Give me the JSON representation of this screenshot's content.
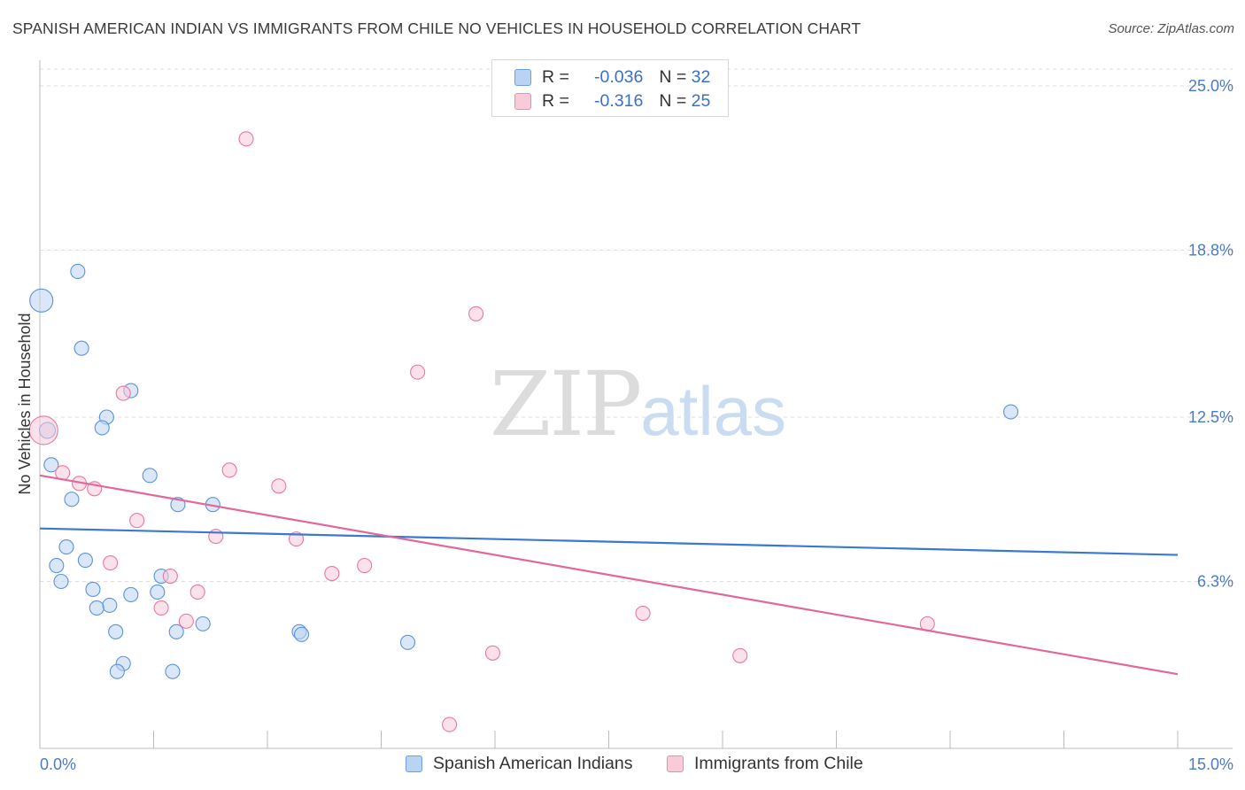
{
  "header": {
    "title": "SPANISH AMERICAN INDIAN VS IMMIGRANTS FROM CHILE NO VEHICLES IN HOUSEHOLD CORRELATION CHART",
    "source": "Source: ZipAtlas.com"
  },
  "legend": {
    "rows": [
      {
        "r_label": "R =",
        "r_value": "-0.036",
        "n_label": "N =",
        "n_value": "32"
      },
      {
        "r_label": "R =",
        "r_value": "-0.316",
        "n_label": "N =",
        "n_value": "25"
      }
    ]
  },
  "watermark": {
    "zip": "ZIP",
    "atlas": "atlas"
  },
  "chart_data": {
    "type": "scatter",
    "title": "SPANISH AMERICAN INDIAN VS IMMIGRANTS FROM CHILE NO VEHICLES IN HOUSEHOLD CORRELATION CHART",
    "ylabel": "No Vehicles in Household",
    "xlabel": "",
    "xlim": [
      0,
      15
    ],
    "ylim": [
      0,
      25.8
    ],
    "x_tick_labels": [
      "0.0%",
      "15.0%"
    ],
    "y_tick_values": [
      6.3,
      12.5,
      18.8,
      25.0
    ],
    "y_tick_labels": [
      "6.3%",
      "12.5%",
      "18.8%",
      "25.0%"
    ],
    "colors": {
      "blue": "#5b93d9",
      "blue_fill": "#bcd4f3",
      "pink": "#e8799d",
      "pink_fill": "#f8c9d7",
      "blue_line": "#3b78d0",
      "pink_line": "#e2679a"
    },
    "series": [
      {
        "name": "Spanish American Indians",
        "color": "#5b93d9",
        "points": [
          {
            "x": 0.02,
            "y": 16.9,
            "s": 13
          },
          {
            "x": 0.1,
            "y": 12.0,
            "s": 9
          },
          {
            "x": 0.5,
            "y": 18.0,
            "s": 8
          },
          {
            "x": 0.55,
            "y": 15.1,
            "s": 8
          },
          {
            "x": 1.2,
            "y": 13.5,
            "s": 8
          },
          {
            "x": 0.88,
            "y": 12.5,
            "s": 8
          },
          {
            "x": 0.82,
            "y": 12.1,
            "s": 8
          },
          {
            "x": 0.15,
            "y": 10.7,
            "s": 8
          },
          {
            "x": 1.45,
            "y": 10.3,
            "s": 8
          },
          {
            "x": 0.42,
            "y": 9.4,
            "s": 8
          },
          {
            "x": 1.82,
            "y": 9.2,
            "s": 8
          },
          {
            "x": 2.28,
            "y": 9.2,
            "s": 8
          },
          {
            "x": 0.35,
            "y": 7.6,
            "s": 8
          },
          {
            "x": 0.6,
            "y": 7.1,
            "s": 8
          },
          {
            "x": 0.22,
            "y": 6.9,
            "s": 8
          },
          {
            "x": 0.28,
            "y": 6.3,
            "s": 8
          },
          {
            "x": 1.6,
            "y": 6.5,
            "s": 8
          },
          {
            "x": 0.7,
            "y": 6.0,
            "s": 8
          },
          {
            "x": 1.2,
            "y": 5.8,
            "s": 8
          },
          {
            "x": 1.55,
            "y": 5.9,
            "s": 8
          },
          {
            "x": 0.92,
            "y": 5.4,
            "s": 8
          },
          {
            "x": 0.75,
            "y": 5.3,
            "s": 8
          },
          {
            "x": 2.15,
            "y": 4.7,
            "s": 8
          },
          {
            "x": 1.0,
            "y": 4.4,
            "s": 8
          },
          {
            "x": 1.8,
            "y": 4.4,
            "s": 8
          },
          {
            "x": 3.42,
            "y": 4.4,
            "s": 8
          },
          {
            "x": 3.45,
            "y": 4.3,
            "s": 8
          },
          {
            "x": 4.85,
            "y": 4.0,
            "s": 8
          },
          {
            "x": 1.1,
            "y": 3.2,
            "s": 8
          },
          {
            "x": 1.02,
            "y": 2.9,
            "s": 8
          },
          {
            "x": 1.75,
            "y": 2.9,
            "s": 8
          },
          {
            "x": 12.8,
            "y": 12.7,
            "s": 8
          }
        ],
        "trend": {
          "x0": 0,
          "y0": 8.3,
          "x1": 15,
          "y1": 7.3
        }
      },
      {
        "name": "Immigrants from Chile",
        "color": "#e8799d",
        "points": [
          {
            "x": 0.05,
            "y": 12.0,
            "s": 16
          },
          {
            "x": 2.72,
            "y": 23.0,
            "s": 8
          },
          {
            "x": 5.75,
            "y": 16.4,
            "s": 8
          },
          {
            "x": 4.98,
            "y": 14.2,
            "s": 8
          },
          {
            "x": 1.1,
            "y": 13.4,
            "s": 8
          },
          {
            "x": 0.3,
            "y": 10.4,
            "s": 8
          },
          {
            "x": 2.5,
            "y": 10.5,
            "s": 8
          },
          {
            "x": 0.52,
            "y": 10.0,
            "s": 8
          },
          {
            "x": 0.72,
            "y": 9.8,
            "s": 8
          },
          {
            "x": 3.15,
            "y": 9.9,
            "s": 8
          },
          {
            "x": 1.28,
            "y": 8.6,
            "s": 8
          },
          {
            "x": 2.32,
            "y": 8.0,
            "s": 8
          },
          {
            "x": 3.38,
            "y": 7.9,
            "s": 8
          },
          {
            "x": 0.93,
            "y": 7.0,
            "s": 8
          },
          {
            "x": 4.28,
            "y": 6.9,
            "s": 8
          },
          {
            "x": 1.72,
            "y": 6.5,
            "s": 8
          },
          {
            "x": 3.85,
            "y": 6.6,
            "s": 8
          },
          {
            "x": 2.08,
            "y": 5.9,
            "s": 8
          },
          {
            "x": 1.6,
            "y": 5.3,
            "s": 8
          },
          {
            "x": 1.93,
            "y": 4.8,
            "s": 8
          },
          {
            "x": 7.95,
            "y": 5.1,
            "s": 8
          },
          {
            "x": 11.7,
            "y": 4.7,
            "s": 8
          },
          {
            "x": 5.97,
            "y": 3.6,
            "s": 8
          },
          {
            "x": 9.23,
            "y": 3.5,
            "s": 8
          },
          {
            "x": 5.4,
            "y": 0.9,
            "s": 8
          }
        ],
        "trend": {
          "x0": 0,
          "y0": 10.3,
          "x1": 15,
          "y1": 2.8
        }
      }
    ]
  }
}
